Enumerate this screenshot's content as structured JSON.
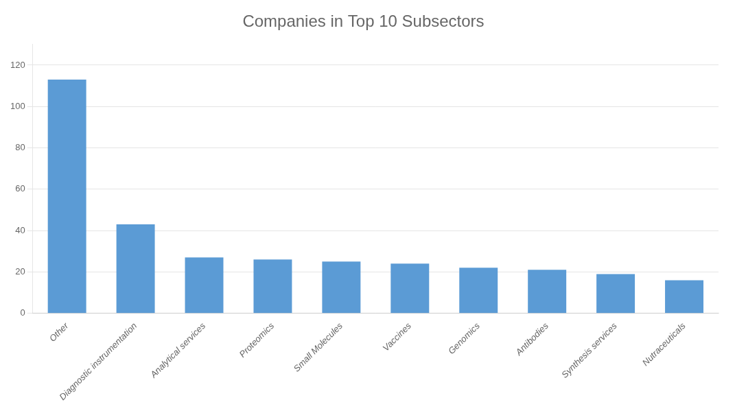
{
  "chart_data": {
    "type": "bar",
    "title": "Companies in Top 10 Subsectors",
    "categories": [
      "Other",
      "Diagnostic instrumentation",
      "Analytical services",
      "Proteomics",
      "Small Molecules",
      "Vaccines",
      "Genomics",
      "Antibodies",
      "Synthesis services",
      "Nutraceuticals"
    ],
    "values": [
      113,
      43,
      27,
      26,
      25,
      24,
      22,
      21,
      19,
      16
    ],
    "color": "#5B9BD5",
    "ylim": [
      0,
      130
    ],
    "yticks": [
      0,
      20,
      40,
      60,
      80,
      100,
      120
    ],
    "grid": true
  }
}
